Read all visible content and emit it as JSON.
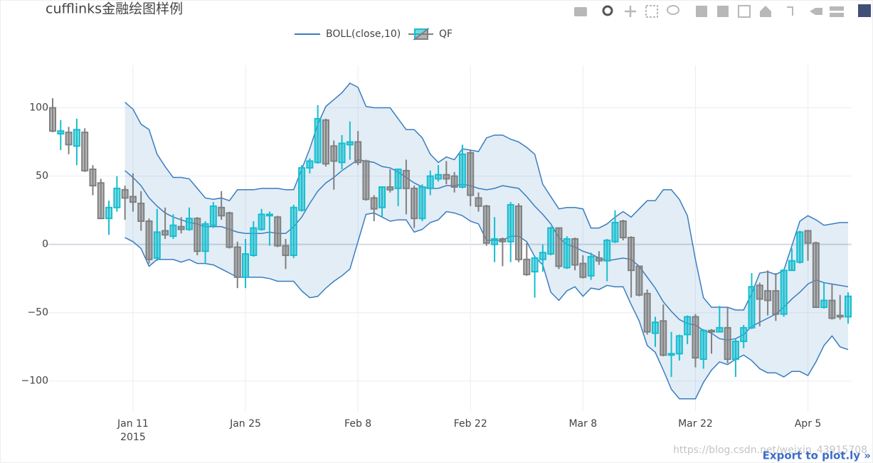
{
  "chart_data": {
    "type": "candlestick",
    "title": "cufflinks金融绘图样例",
    "x": [
      "2015-01-01",
      "2015-01-02",
      "2015-01-03",
      "2015-01-04",
      "2015-01-05",
      "2015-01-06",
      "2015-01-07",
      "2015-01-08",
      "2015-01-09",
      "2015-01-10",
      "2015-01-11",
      "2015-01-12",
      "2015-01-13",
      "2015-01-14",
      "2015-01-15",
      "2015-01-16",
      "2015-01-17",
      "2015-01-18",
      "2015-01-19",
      "2015-01-20",
      "2015-01-21",
      "2015-01-22",
      "2015-01-23",
      "2015-01-24",
      "2015-01-25",
      "2015-01-26",
      "2015-01-27",
      "2015-01-28",
      "2015-01-29",
      "2015-01-30",
      "2015-01-31",
      "2015-02-01",
      "2015-02-02",
      "2015-02-03",
      "2015-02-04",
      "2015-02-05",
      "2015-02-06",
      "2015-02-07",
      "2015-02-08",
      "2015-02-09",
      "2015-02-10",
      "2015-02-11",
      "2015-02-12",
      "2015-02-13",
      "2015-02-14",
      "2015-02-15",
      "2015-02-16",
      "2015-02-17",
      "2015-02-18",
      "2015-02-19",
      "2015-02-20",
      "2015-02-21",
      "2015-02-22",
      "2015-02-23",
      "2015-02-24",
      "2015-02-25",
      "2015-02-26",
      "2015-02-27",
      "2015-02-28",
      "2015-03-01",
      "2015-03-02",
      "2015-03-03",
      "2015-03-04",
      "2015-03-05",
      "2015-03-06",
      "2015-03-07",
      "2015-03-08",
      "2015-03-09",
      "2015-03-10",
      "2015-03-11",
      "2015-03-12",
      "2015-03-13",
      "2015-03-14",
      "2015-03-15",
      "2015-03-16",
      "2015-03-17",
      "2015-03-18",
      "2015-03-19",
      "2015-03-20",
      "2015-03-21",
      "2015-03-22",
      "2015-03-23",
      "2015-03-24",
      "2015-03-25",
      "2015-03-26",
      "2015-03-27",
      "2015-03-28",
      "2015-03-29",
      "2015-03-30",
      "2015-03-31",
      "2015-04-01",
      "2015-04-02",
      "2015-04-03",
      "2015-04-04",
      "2015-04-05",
      "2015-04-06",
      "2015-04-07",
      "2015-04-08",
      "2015-04-09",
      "2015-04-10"
    ],
    "candles": {
      "name": "QF",
      "increasing_color": "#17becf",
      "decreasing_color": "#808080",
      "open": [
        100,
        81,
        82,
        72,
        82,
        55,
        45,
        19,
        27,
        40,
        35,
        30,
        17,
        -10,
        10,
        6,
        13,
        11,
        19,
        -5,
        14,
        27,
        23,
        -2,
        -24,
        -8,
        11,
        21,
        20,
        -1,
        -8,
        25,
        56,
        60,
        91,
        72,
        60,
        73,
        75,
        61,
        34,
        27,
        42,
        41,
        54,
        41,
        19,
        41,
        48,
        51,
        50,
        42,
        67,
        34,
        28,
        0,
        4,
        2,
        28,
        -11,
        -20,
        -11,
        -7,
        12,
        -17,
        4,
        -14,
        -23,
        -10,
        -12,
        2,
        17,
        5,
        -16,
        -36,
        -65,
        -56,
        -81,
        -80,
        -66,
        -53,
        -84,
        -63,
        -64,
        -61,
        -84,
        -71,
        -61,
        -30,
        -34,
        -34,
        -51,
        -19,
        -13,
        10,
        1,
        -46,
        -41,
        -52,
        -53
      ],
      "high": [
        107,
        91,
        86,
        92,
        85,
        58,
        48,
        32,
        50,
        43,
        52,
        39,
        19,
        26,
        27,
        22,
        20,
        27,
        20,
        17,
        31,
        39,
        24,
        2,
        4,
        17,
        26,
        24,
        21,
        4,
        29,
        58,
        63,
        102,
        92,
        76,
        80,
        90,
        83,
        62,
        36,
        42,
        55,
        55,
        62,
        43,
        44,
        54,
        58,
        61,
        53,
        73,
        69,
        38,
        29,
        20,
        5,
        31,
        30,
        1,
        -9,
        0,
        13,
        12,
        6,
        5,
        -8,
        -6,
        -5,
        4,
        25,
        18,
        6,
        -16,
        -33,
        -53,
        -44,
        -64,
        -66,
        -52,
        -51,
        -62,
        -62,
        -45,
        -46,
        -69,
        -59,
        -21,
        -28,
        -19,
        -21,
        -18,
        -3,
        10,
        10,
        2,
        -28,
        -29,
        -37,
        -35
      ],
      "low": [
        82,
        69,
        66,
        58,
        53,
        36,
        19,
        7,
        24,
        18,
        24,
        10,
        -14,
        -12,
        4,
        4,
        8,
        10,
        -8,
        -14,
        12,
        18,
        -3,
        -32,
        -32,
        -9,
        10,
        -1,
        -2,
        -18,
        -10,
        24,
        52,
        59,
        57,
        40,
        55,
        62,
        58,
        32,
        17,
        20,
        38,
        28,
        22,
        12,
        17,
        36,
        46,
        44,
        38,
        41,
        28,
        24,
        -1,
        -13,
        -16,
        -13,
        -13,
        -23,
        -39,
        -20,
        -8,
        -18,
        -18,
        -19,
        -25,
        -26,
        -15,
        -27,
        1,
        3,
        -39,
        -38,
        -66,
        -75,
        -82,
        -97,
        -85,
        -73,
        -90,
        -91,
        -80,
        -64,
        -87,
        -97,
        -76,
        -62,
        -60,
        -52,
        -56,
        -53,
        -19,
        -14,
        -12,
        -46,
        -47,
        -55,
        -55,
        -58
      ],
      "close": [
        83,
        83,
        73,
        84,
        54,
        43,
        19,
        27,
        41,
        34,
        31,
        17,
        -11,
        9,
        7,
        14,
        11,
        19,
        -5,
        15,
        28,
        21,
        -2,
        -24,
        -7,
        12,
        22,
        22,
        -1,
        -8,
        27,
        56,
        61,
        92,
        59,
        61,
        74,
        75,
        60,
        33,
        26,
        42,
        40,
        55,
        41,
        19,
        42,
        50,
        51,
        48,
        42,
        66,
        36,
        28,
        1,
        4,
        2,
        29,
        -11,
        -22,
        -10,
        -6,
        12,
        -16,
        4,
        -15,
        -24,
        -9,
        -12,
        3,
        16,
        5,
        -19,
        -37,
        -64,
        -57,
        -81,
        -80,
        -67,
        -53,
        -83,
        -63,
        -64,
        -61,
        -84,
        -71,
        -61,
        -31,
        -40,
        -41,
        -51,
        -19,
        -12,
        9,
        1,
        -46,
        -41,
        -54,
        -53,
        -38
      ]
    },
    "bands": {
      "name": "BOLL(close,10)",
      "color": "#3a7dbf",
      "fill": "rgba(58,125,191,0.14)",
      "upper": [
        null,
        null,
        null,
        null,
        null,
        null,
        null,
        null,
        null,
        104,
        99,
        88,
        84,
        66,
        57,
        49,
        49,
        48,
        41,
        34,
        33,
        34,
        32,
        40,
        40,
        40,
        41,
        41,
        41,
        40,
        40,
        55,
        70,
        88,
        101,
        106,
        111,
        118,
        115,
        101,
        100,
        100,
        100,
        92,
        84,
        84,
        78,
        66,
        60,
        64,
        62,
        70,
        69,
        68,
        78,
        80,
        80,
        77,
        75,
        71,
        66,
        44,
        35,
        26,
        27,
        27,
        26,
        12,
        12,
        15,
        20,
        24,
        20,
        26,
        32,
        32,
        40,
        40,
        33,
        21,
        -11,
        -39,
        -46,
        -46,
        -46,
        -48,
        -48,
        -36,
        -21,
        -20,
        -22,
        -19,
        -1,
        17,
        21,
        18,
        14,
        15,
        16,
        16
      ],
      "middle": [
        null,
        null,
        null,
        null,
        null,
        null,
        null,
        null,
        null,
        54,
        49,
        43,
        34,
        28,
        23,
        20,
        18,
        16,
        15,
        13,
        13,
        13,
        11,
        9,
        8,
        8,
        8,
        9,
        8,
        8,
        13,
        20,
        30,
        39,
        45,
        49,
        54,
        58,
        62,
        61,
        60,
        57,
        56,
        53,
        49,
        45,
        42,
        41,
        41,
        43,
        43,
        44,
        43,
        41,
        40,
        41,
        43,
        42,
        41,
        35,
        28,
        22,
        15,
        5,
        0,
        -2,
        -5,
        -7,
        -10,
        -12,
        -11,
        -10,
        -11,
        -16,
        -24,
        -32,
        -42,
        -49,
        -55,
        -58,
        -59,
        -63,
        -65,
        -69,
        -70,
        -69,
        -66,
        -60,
        -57,
        -54,
        -51,
        -46,
        -40,
        -35,
        -29,
        -26,
        -28,
        -29,
        -30,
        -31
      ],
      "lower": [
        null,
        null,
        null,
        null,
        null,
        null,
        null,
        null,
        null,
        5,
        2,
        -3,
        -16,
        -11,
        -11,
        -11,
        -13,
        -11,
        -14,
        -14,
        -15,
        -18,
        -21,
        -24,
        -24,
        -24,
        -24,
        -25,
        -27,
        -27,
        -27,
        -34,
        -39,
        -38,
        -32,
        -27,
        -23,
        -18,
        2,
        22,
        23,
        20,
        17,
        18,
        18,
        9,
        11,
        16,
        18,
        24,
        23,
        21,
        17,
        15,
        3,
        3,
        3,
        6,
        6,
        2,
        -9,
        -15,
        -35,
        -41,
        -34,
        -31,
        -38,
        -32,
        -33,
        -30,
        -31,
        -31,
        -44,
        -56,
        -74,
        -79,
        -92,
        -106,
        -113,
        -113,
        -113,
        -101,
        -92,
        -86,
        -88,
        -84,
        -81,
        -85,
        -91,
        -94,
        -94,
        -97,
        -93,
        -93,
        -96,
        -86,
        -74,
        -67,
        -75,
        -77
      ]
    },
    "xlim": [
      "2015-01-01",
      "2015-04-10"
    ],
    "xticks": [
      {
        "value": "2015-01-11",
        "label": "Jan 11"
      },
      {
        "value": "2015-01-25",
        "label": "Jan 25"
      },
      {
        "value": "2015-02-08",
        "label": "Feb 8"
      },
      {
        "value": "2015-02-22",
        "label": "Feb 22"
      },
      {
        "value": "2015-03-08",
        "label": "Mar 8"
      },
      {
        "value": "2015-03-22",
        "label": "Mar 22"
      },
      {
        "value": "2015-04-05",
        "label": "Apr 5"
      }
    ],
    "x_year_label": "2015",
    "ylim": [
      -122,
      131
    ],
    "yticks": [
      {
        "value": -100,
        "label": "−100"
      },
      {
        "value": -50,
        "label": "−50"
      },
      0,
      50,
      100
    ],
    "grid": true,
    "export_link": "Export to plot.ly »",
    "watermark": "https://blog.csdn.net/weixin_43915708"
  }
}
